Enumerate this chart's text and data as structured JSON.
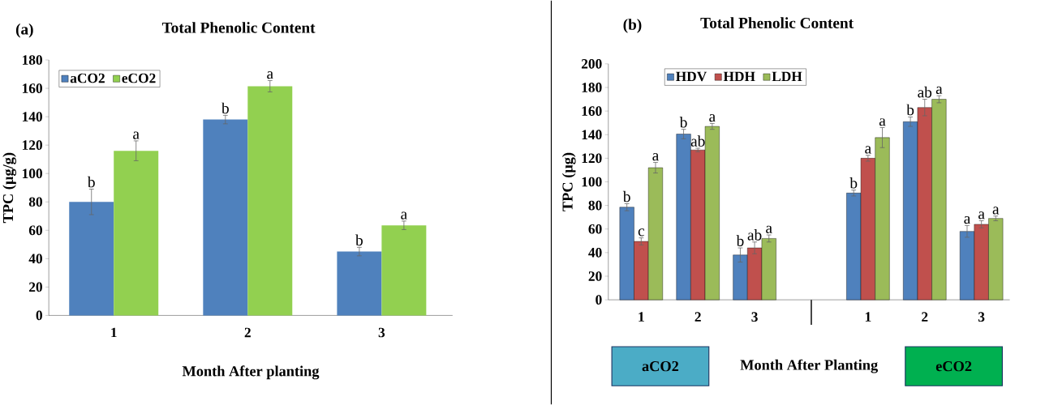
{
  "chart_data": [
    {
      "type": "bar",
      "title": "Total Phenolic Content",
      "xlabel": "Month After planting",
      "ylabel": "TPC (µg/g)",
      "annotations": [
        "(a)"
      ],
      "categories": [
        "1",
        "2",
        "3"
      ],
      "series": [
        {
          "name": "aCO2",
          "color": "#4f81bd",
          "values": [
            80,
            138,
            45
          ],
          "errors": [
            9,
            3,
            3
          ],
          "value_labels": [
            "b",
            "b",
            "b"
          ]
        },
        {
          "name": "eCO2",
          "color": "#92d050",
          "values": [
            116,
            161.5,
            63.5
          ],
          "errors": [
            7,
            4,
            3
          ],
          "value_labels": [
            "a",
            "a",
            "a"
          ]
        }
      ],
      "ylim": [
        0,
        180
      ],
      "yticks": [
        0,
        20,
        40,
        60,
        80,
        100,
        120,
        140,
        160,
        180
      ],
      "legend": "top left"
    },
    {
      "type": "bar",
      "title": "Total Phenolic Content",
      "xlabel": "Month After Planting",
      "ylabel": "TPC (µg)",
      "annotations": [
        "(b)",
        "aCO2",
        "eCO2"
      ],
      "categories": [
        "1",
        "2",
        "3",
        null,
        "1",
        "2",
        "3"
      ],
      "series": [
        {
          "name": "HDV",
          "color": "#4f81bd",
          "values": [
            78.5,
            140.5,
            38,
            null,
            90.5,
            151,
            58
          ],
          "errors": [
            3,
            4,
            6,
            null,
            2.5,
            4,
            5
          ],
          "value_labels": [
            "b",
            "b",
            "b",
            null,
            "b",
            "b",
            "a"
          ]
        },
        {
          "name": "HDH",
          "color": "#c0504d",
          "values": [
            49.5,
            127,
            44,
            null,
            120,
            163,
            64
          ],
          "errors": [
            3,
            1.5,
            5,
            null,
            2.5,
            7,
            3
          ],
          "value_labels": [
            "c",
            "ab",
            "ab",
            null,
            "a",
            "ab",
            "a"
          ]
        },
        {
          "name": "LDH",
          "color": "#9bbb59",
          "values": [
            112,
            147,
            52,
            null,
            137.5,
            170,
            69
          ],
          "errors": [
            4.5,
            2.5,
            3,
            null,
            8.5,
            3,
            2
          ],
          "value_labels": [
            "a",
            "a",
            "a",
            null,
            "a",
            "a",
            "a"
          ]
        }
      ],
      "ylim": [
        0,
        200
      ],
      "yticks": [
        0,
        20,
        40,
        60,
        80,
        100,
        120,
        140,
        160,
        180,
        200
      ],
      "legend": "top left"
    }
  ]
}
